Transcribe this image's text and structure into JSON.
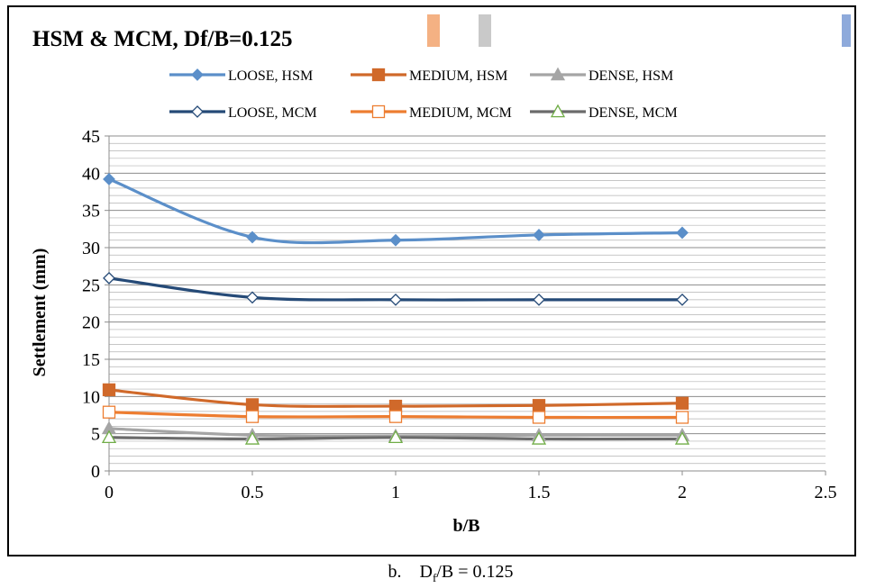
{
  "chart_data": {
    "type": "line",
    "title": "HSM & MCM, Df/B=0.125",
    "xlabel": "b/B",
    "ylabel": "Settlement (mm)",
    "xlim": [
      0,
      2.5
    ],
    "ylim": [
      0,
      45
    ],
    "x_ticks": [
      "0",
      "0.5",
      "1",
      "1.5",
      "2",
      "2.5"
    ],
    "y_ticks": [
      "0",
      "5",
      "10",
      "15",
      "20",
      "25",
      "30",
      "35",
      "40",
      "45"
    ],
    "x": [
      0,
      0.5,
      1,
      1.5,
      2
    ],
    "grid": "horizontal",
    "legend_position": "top",
    "series": [
      {
        "name": "LOOSE, HSM",
        "values": [
          39.2,
          31.4,
          31.0,
          31.7,
          32.0
        ],
        "color": "#5b8fc9",
        "marker": "diamond",
        "filled": true
      },
      {
        "name": "MEDIUM, HSM",
        "values": [
          10.9,
          8.9,
          8.7,
          8.8,
          9.1
        ],
        "color": "#d0692a",
        "marker": "square",
        "filled": true
      },
      {
        "name": "DENSE, HSM",
        "values": [
          5.7,
          4.8,
          4.7,
          4.8,
          4.8
        ],
        "color": "#a5a5a5",
        "marker": "triangle",
        "filled": true
      },
      {
        "name": "LOOSE, MCM",
        "values": [
          25.9,
          23.3,
          23.0,
          23.0,
          23.0
        ],
        "color": "#254a77",
        "marker": "diamond",
        "filled": false
      },
      {
        "name": "MEDIUM, MCM",
        "values": [
          7.9,
          7.3,
          7.3,
          7.2,
          7.2
        ],
        "color": "#ed7d31",
        "marker": "square",
        "filled": false
      },
      {
        "name": "DENSE, MCM",
        "values": [
          4.5,
          4.3,
          4.5,
          4.3,
          4.3
        ],
        "color": "#6b6b6b",
        "marker": "triangle",
        "filled": false,
        "marker_color": "#70ad47"
      }
    ]
  },
  "caption": {
    "prefix": "b.",
    "text": "Df/B = 0.125",
    "d": "D",
    "sub": "f",
    "rest": "/B = 0.125"
  },
  "decor_colors": [
    "#f4b183",
    "#c9c9c9",
    "#8eaadb"
  ]
}
